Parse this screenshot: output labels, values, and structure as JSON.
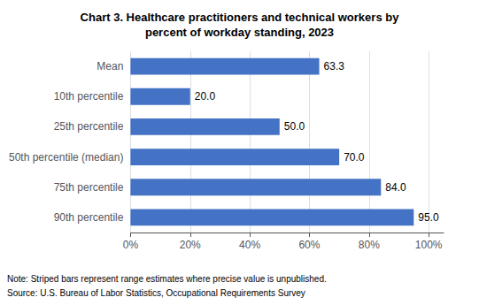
{
  "chart_data": {
    "type": "bar",
    "title": "Chart 3. Healthcare practitioners and technical workers by\npercent of workday standing, 2023",
    "orientation": "horizontal",
    "categories": [
      "Mean",
      "10th percentile",
      "25th percentile",
      "50th percentile (median)",
      "75th percentile",
      "90th percentile"
    ],
    "values": [
      63.3,
      20.0,
      50.0,
      70.0,
      84.0,
      95.0
    ],
    "value_labels": [
      "63.3",
      "20.0",
      "50.0",
      "70.0",
      "84.0",
      "95.0"
    ],
    "data_labels": true,
    "color": "#4472C4",
    "xlim": [
      0,
      105
    ],
    "xticks": [
      {
        "value": 0,
        "label": "0%"
      },
      {
        "value": 20,
        "label": "20%"
      },
      {
        "value": 40,
        "label": "40%"
      },
      {
        "value": 60,
        "label": "60%"
      },
      {
        "value": 80,
        "label": "80%"
      },
      {
        "value": 100,
        "label": "100%"
      }
    ],
    "grid": true,
    "annotations": [
      "Note: Striped bars represent range estimates where precise value is unpublished.",
      "Source: U.S. Bureau of Labor Statistics, Occupational Requirements Survey"
    ]
  }
}
